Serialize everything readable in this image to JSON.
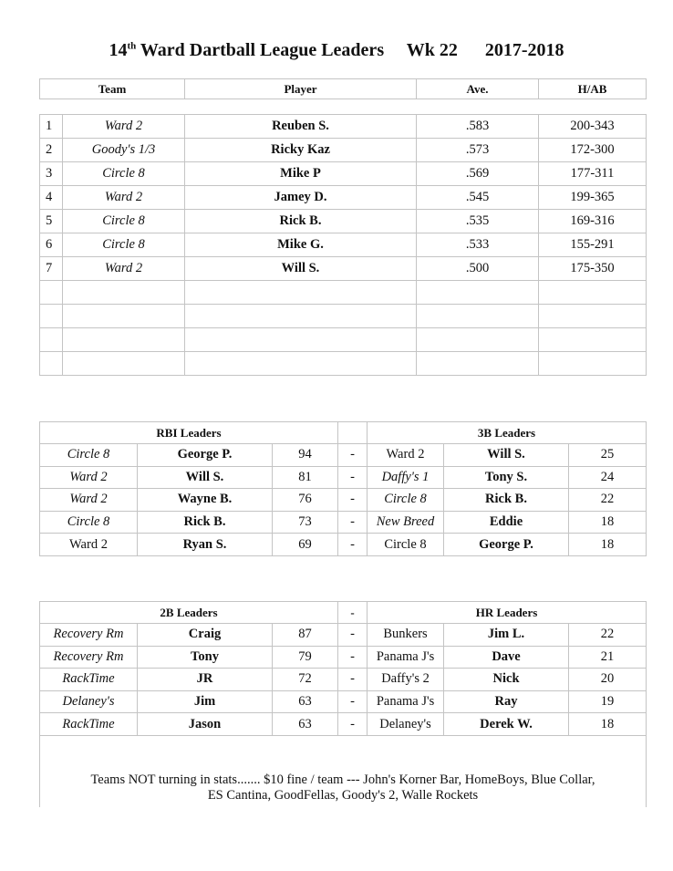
{
  "title": {
    "prefix": "14",
    "sup": "th",
    "rest": " Ward Dartball League Leaders     Wk 22      2017-2018"
  },
  "batting": {
    "headers": [
      "Team",
      "Player",
      "Ave.",
      "H/AB"
    ],
    "rows": [
      {
        "rank": "1",
        "team": "Ward  2",
        "player": "Reuben S.",
        "ave": ".583",
        "hab": "200-343"
      },
      {
        "rank": "2",
        "team": "Goody's  1/3",
        "player": "Ricky Kaz",
        "ave": ".573",
        "hab": "172-300"
      },
      {
        "rank": "3",
        "team": "Circle  8",
        "player": "Mike P",
        "ave": ".569",
        "hab": "177-311"
      },
      {
        "rank": "4",
        "team": "Ward  2",
        "player": "Jamey D.",
        "ave": ".545",
        "hab": "199-365"
      },
      {
        "rank": "5",
        "team": "Circle  8",
        "player": "Rick  B.",
        "ave": ".535",
        "hab": "169-316"
      },
      {
        "rank": "6",
        "team": "Circle  8",
        "player": "Mike G.",
        "ave": ".533",
        "hab": "155-291"
      },
      {
        "rank": "7",
        "team": "Ward  2",
        "player": "Will S.",
        "ave": ".500",
        "hab": "175-350"
      }
    ]
  },
  "rbi_3b": {
    "left_title": "RBI Leaders",
    "right_title": "3B Leaders",
    "sep": "",
    "rows": [
      {
        "lteam": "Circle  8",
        "lplayer": "George P.",
        "lval": "94",
        "sep": "-",
        "rteam": "Ward  2",
        "rplayer": "Will S.",
        "rval": "25"
      },
      {
        "lteam": "Ward  2",
        "lplayer": "Will S.",
        "lval": "81",
        "sep": "-",
        "rteam": "Daffy's 1",
        "rplayer": "Tony S.",
        "rval": "24"
      },
      {
        "lteam": "Ward  2",
        "lplayer": "Wayne B.",
        "lval": "76",
        "sep": "-",
        "rteam": "Circle 8",
        "rplayer": "Rick B.",
        "rval": "22"
      },
      {
        "lteam": "Circle  8",
        "lplayer": "Rick B.",
        "lval": "73",
        "sep": "-",
        "rteam": "New Breed",
        "rplayer": "Eddie",
        "rval": "18"
      },
      {
        "lteam": "Ward  2",
        "lplayer": "Ryan S.",
        "lval": "69",
        "sep": "-",
        "rteam": "Circle 8",
        "rplayer": "George P.",
        "rval": "18"
      }
    ]
  },
  "b2_hr": {
    "left_title": "2B Leaders",
    "right_title": "HR Leaders",
    "sep": "-",
    "rows": [
      {
        "lteam": "Recovery Rm",
        "lplayer": "Craig",
        "lval": "87",
        "sep": "-",
        "rteam": "Bunkers",
        "rplayer": "Jim L.",
        "rval": "22"
      },
      {
        "lteam": "Recovery Rm",
        "lplayer": "Tony",
        "lval": "79",
        "sep": "-",
        "rteam": "Panama J's",
        "rplayer": "Dave",
        "rval": "21"
      },
      {
        "lteam": "RackTime",
        "lplayer": "JR",
        "lval": "72",
        "sep": "-",
        "rteam": "Daffy's 2",
        "rplayer": "Nick",
        "rval": "20"
      },
      {
        "lteam": "Delaney's",
        "lplayer": "Jim",
        "lval": "63",
        "sep": "-",
        "rteam": "Panama J's",
        "rplayer": "Ray",
        "rval": "19"
      },
      {
        "lteam": "RackTime",
        "lplayer": "Jason",
        "lval": "63",
        "sep": "-",
        "rteam": "Delaney's",
        "rplayer": "Derek W.",
        "rval": "18"
      }
    ],
    "footer": [
      "Teams NOT turning in stats.......  $10 fine / team --- John's Korner Bar, HomeBoys, Blue Collar,",
      "ES Cantina, GoodFellas, Goody's 2, Walle Rockets"
    ]
  }
}
